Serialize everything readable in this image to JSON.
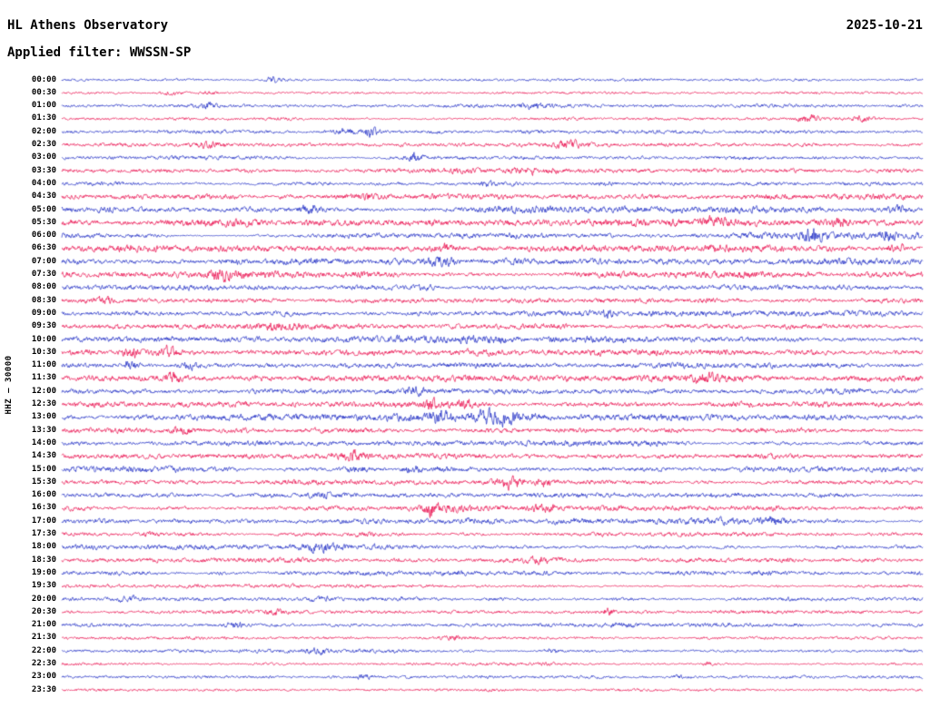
{
  "header": {
    "title": "HL Athens Observatory",
    "date": "2025-10-21",
    "filter": "Applied filter: WWSSN-SP"
  },
  "y_axis_label": "HHZ – 30000",
  "chart_data": {
    "type": "line",
    "subtype": "helicorder-seismogram",
    "station": "HL Athens Observatory",
    "channel": "HHZ",
    "scale": "30000",
    "filter": "WWSSN-SP",
    "date": "2025-10-21",
    "row_interval_minutes": 30,
    "minutes_per_row": 30,
    "legend": "none",
    "grid": false,
    "trace_colors": {
      "blue": "#2432c6",
      "red": "#ea1250"
    },
    "rows": [
      {
        "t": "00:00",
        "c": "blue",
        "a": 1.1,
        "ev": [
          [
            0.245,
            3.5,
            0.008
          ]
        ]
      },
      {
        "t": "00:30",
        "c": "red",
        "a": 1.1,
        "ev": [
          [
            0.13,
            2.2,
            0.015
          ],
          [
            0.17,
            1.8,
            0.012
          ]
        ]
      },
      {
        "t": "01:00",
        "c": "blue",
        "a": 1.2,
        "ev": [
          [
            0.17,
            2.0,
            0.012
          ],
          [
            0.55,
            1.4,
            0.02
          ]
        ]
      },
      {
        "t": "01:30",
        "c": "red",
        "a": 1.2,
        "ev": [
          [
            0.87,
            1.8,
            0.015
          ],
          [
            0.93,
            1.6,
            0.01
          ]
        ]
      },
      {
        "t": "02:00",
        "c": "blue",
        "a": 1.4,
        "ev": [
          [
            0.36,
            5.0,
            0.008
          ],
          [
            0.335,
            1.8,
            0.02
          ]
        ]
      },
      {
        "t": "02:30",
        "c": "red",
        "a": 1.6,
        "ev": [
          [
            0.59,
            2.8,
            0.018
          ],
          [
            0.17,
            1.8,
            0.015
          ]
        ]
      },
      {
        "t": "03:00",
        "c": "blue",
        "a": 1.7,
        "ev": [
          [
            0.41,
            4.2,
            0.009
          ]
        ]
      },
      {
        "t": "03:30",
        "c": "red",
        "a": 1.8,
        "ev": [
          [
            0.55,
            1.8,
            0.025
          ]
        ]
      },
      {
        "t": "04:00",
        "c": "blue",
        "a": 1.9,
        "ev": [
          [
            0.495,
            8.5,
            0.008
          ],
          [
            0.52,
            3.5,
            0.016
          ],
          [
            0.63,
            2.6,
            0.014
          ]
        ]
      },
      {
        "t": "04:30",
        "c": "red",
        "a": 2.2,
        "ev": [
          [
            0.35,
            2.2,
            0.025
          ]
        ]
      },
      {
        "t": "05:00",
        "c": "blue",
        "a": 2.6,
        "ev": [
          [
            0.29,
            3.2,
            0.014
          ],
          [
            0.97,
            2.6,
            0.01
          ]
        ]
      },
      {
        "t": "05:30",
        "c": "red",
        "a": 2.8,
        "ev": [
          [
            0.76,
            2.6,
            0.015
          ],
          [
            0.9,
            2.2,
            0.012
          ]
        ]
      },
      {
        "t": "06:00",
        "c": "blue",
        "a": 2.8,
        "ev": [
          [
            0.87,
            3.6,
            0.01
          ],
          [
            0.96,
            2.6,
            0.008
          ]
        ]
      },
      {
        "t": "06:30",
        "c": "red",
        "a": 2.8,
        "ev": [
          [
            0.445,
            3.2,
            0.013
          ],
          [
            0.97,
            3.0,
            0.01
          ]
        ]
      },
      {
        "t": "07:00",
        "c": "blue",
        "a": 2.7,
        "ev": [
          [
            0.44,
            3.2,
            0.014
          ],
          [
            0.2,
            2.2,
            0.018
          ]
        ]
      },
      {
        "t": "07:30",
        "c": "red",
        "a": 2.5,
        "ev": [
          [
            0.185,
            2.8,
            0.013
          ]
        ]
      },
      {
        "t": "08:00",
        "c": "blue",
        "a": 2.2,
        "ev": [
          [
            0.42,
            1.8,
            0.02
          ]
        ]
      },
      {
        "t": "08:30",
        "c": "red",
        "a": 2.1,
        "ev": [
          [
            0.05,
            2.2,
            0.01
          ],
          [
            0.75,
            1.8,
            0.014
          ]
        ]
      },
      {
        "t": "09:00",
        "c": "blue",
        "a": 2.1,
        "ev": [
          [
            0.63,
            2.2,
            0.013
          ]
        ]
      },
      {
        "t": "09:30",
        "c": "red",
        "a": 2.0,
        "ev": [
          [
            0.25,
            1.8,
            0.02
          ]
        ]
      },
      {
        "t": "10:00",
        "c": "blue",
        "a": 2.3,
        "ev": [
          [
            0.5,
            1.8,
            0.025
          ]
        ]
      },
      {
        "t": "10:30",
        "c": "red",
        "a": 2.3,
        "ev": [
          [
            0.08,
            5.0,
            0.008
          ],
          [
            0.125,
            4.0,
            0.01
          ]
        ]
      },
      {
        "t": "11:00",
        "c": "blue",
        "a": 2.4,
        "ev": [
          [
            0.08,
            6.0,
            0.008
          ],
          [
            0.15,
            3.6,
            0.012
          ]
        ]
      },
      {
        "t": "11:30",
        "c": "red",
        "a": 2.2,
        "ev": [
          [
            0.13,
            4.0,
            0.009
          ],
          [
            0.75,
            1.8,
            0.02
          ]
        ]
      },
      {
        "t": "12:00",
        "c": "blue",
        "a": 2.2,
        "ev": [
          [
            0.41,
            2.2,
            0.014
          ]
        ]
      },
      {
        "t": "12:30",
        "c": "red",
        "a": 2.2,
        "ev": [
          [
            0.43,
            2.8,
            0.015
          ],
          [
            0.47,
            2.2,
            0.012
          ]
        ]
      },
      {
        "t": "13:00",
        "c": "blue",
        "a": 2.4,
        "ev": [
          [
            0.44,
            4.6,
            0.012
          ],
          [
            0.49,
            4.0,
            0.014
          ],
          [
            0.52,
            3.0,
            0.012
          ]
        ]
      },
      {
        "t": "13:30",
        "c": "red",
        "a": 2.2,
        "ev": [
          [
            0.14,
            2.2,
            0.013
          ]
        ]
      },
      {
        "t": "14:00",
        "c": "blue",
        "a": 2.1,
        "ev": [
          [
            0.6,
            1.8,
            0.02
          ]
        ]
      },
      {
        "t": "14:30",
        "c": "red",
        "a": 2.0,
        "ev": [
          [
            0.34,
            2.2,
            0.013
          ]
        ]
      },
      {
        "t": "15:00",
        "c": "blue",
        "a": 2.3,
        "ev": [
          [
            0.345,
            4.2,
            0.013
          ],
          [
            0.405,
            3.6,
            0.012
          ],
          [
            0.44,
            2.6,
            0.01
          ]
        ]
      },
      {
        "t": "15:30",
        "c": "red",
        "a": 2.1,
        "ev": [
          [
            0.52,
            2.8,
            0.014
          ],
          [
            0.56,
            2.2,
            0.01
          ]
        ]
      },
      {
        "t": "16:00",
        "c": "blue",
        "a": 2.1,
        "ev": [
          [
            0.3,
            1.8,
            0.02
          ]
        ]
      },
      {
        "t": "16:30",
        "c": "red",
        "a": 2.1,
        "ev": [
          [
            0.43,
            5.5,
            0.009
          ],
          [
            0.46,
            2.8,
            0.013
          ],
          [
            0.56,
            2.2,
            0.015
          ]
        ]
      },
      {
        "t": "17:00",
        "c": "blue",
        "a": 2.1,
        "ev": [
          [
            0.83,
            2.2,
            0.013
          ]
        ]
      },
      {
        "t": "17:30",
        "c": "red",
        "a": 2.0,
        "ev": [
          [
            0.35,
            2.2,
            0.014
          ],
          [
            0.1,
            1.8,
            0.013
          ]
        ]
      },
      {
        "t": "18:00",
        "c": "blue",
        "a": 2.1,
        "ev": [
          [
            0.77,
            2.2,
            0.013
          ],
          [
            0.3,
            1.8,
            0.015
          ]
        ]
      },
      {
        "t": "18:30",
        "c": "red",
        "a": 1.9,
        "ev": [
          [
            0.55,
            1.8,
            0.02
          ]
        ]
      },
      {
        "t": "19:00",
        "c": "blue",
        "a": 2.0,
        "ev": [
          [
            0.82,
            2.2,
            0.014
          ],
          [
            0.18,
            1.8,
            0.013
          ]
        ]
      },
      {
        "t": "19:30",
        "c": "red",
        "a": 1.7,
        "ev": [
          [
            0.15,
            1.8,
            0.013
          ]
        ]
      },
      {
        "t": "20:00",
        "c": "blue",
        "a": 1.9,
        "ev": [
          [
            0.08,
            2.2,
            0.01
          ],
          [
            0.3,
            1.8,
            0.013
          ],
          [
            0.5,
            1.8,
            0.013
          ]
        ]
      },
      {
        "t": "20:30",
        "c": "red",
        "a": 1.5,
        "ev": [
          [
            0.635,
            3.6,
            0.006
          ],
          [
            0.25,
            1.6,
            0.013
          ]
        ]
      },
      {
        "t": "21:00",
        "c": "blue",
        "a": 1.8,
        "ev": [
          [
            0.2,
            2.2,
            0.013
          ],
          [
            0.65,
            1.6,
            0.015
          ]
        ]
      },
      {
        "t": "21:30",
        "c": "red",
        "a": 1.3,
        "ev": [
          [
            0.45,
            1.3,
            0.015
          ]
        ]
      },
      {
        "t": "22:00",
        "c": "blue",
        "a": 1.4,
        "ev": [
          [
            0.57,
            2.2,
            0.008
          ],
          [
            0.3,
            1.4,
            0.013
          ]
        ]
      },
      {
        "t": "22:30",
        "c": "red",
        "a": 1.2,
        "ev": [
          [
            0.75,
            1.4,
            0.01
          ]
        ]
      },
      {
        "t": "23:00",
        "c": "blue",
        "a": 1.3,
        "ev": [
          [
            0.35,
            1.8,
            0.01
          ],
          [
            0.72,
            1.5,
            0.013
          ]
        ]
      },
      {
        "t": "23:30",
        "c": "red",
        "a": 1.1,
        "ev": [
          [
            0.5,
            1.2,
            0.013
          ]
        ]
      }
    ]
  }
}
